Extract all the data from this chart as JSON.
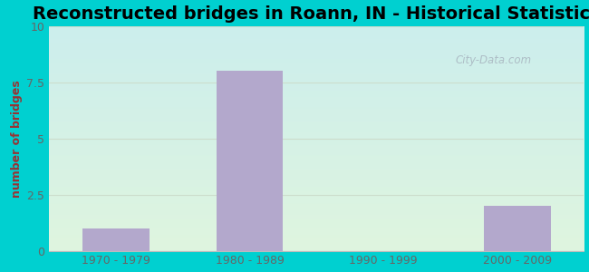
{
  "title": "Reconstructed bridges in Roann, IN - Historical Statistics",
  "categories": [
    "1970 - 1979",
    "1980 - 1989",
    "1990 - 1999",
    "2000 - 2009"
  ],
  "values": [
    1,
    8,
    0,
    2
  ],
  "bar_color": "#b3a8cc",
  "ylabel": "number of bridges",
  "ylim": [
    0,
    10
  ],
  "yticks": [
    0,
    2.5,
    5,
    7.5,
    10
  ],
  "title_fontsize": 14,
  "label_fontsize": 9,
  "tick_fontsize": 9,
  "outer_bg": "#00d0d0",
  "plot_bg_top": "#cceeed",
  "plot_bg_bottom": "#dff5df",
  "watermark": "City-Data.com",
  "ylabel_color": "#993333",
  "tick_color": "#666666",
  "grid_color": "#ccddcc",
  "bar_width": 0.5
}
